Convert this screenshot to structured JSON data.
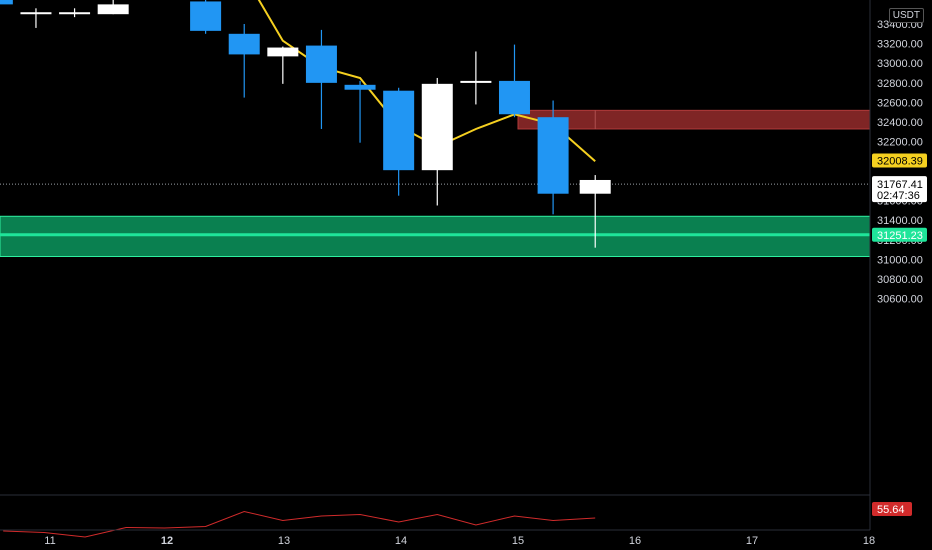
{
  "header": {
    "unit_label": "USDT"
  },
  "chart_data": {
    "type": "candlestick",
    "y_axis": {
      "range": [
        30400,
        33500
      ],
      "ticks": [
        "33400.00",
        "33200.00",
        "33000.00",
        "32800.00",
        "32600.00",
        "32400.00",
        "32200.00",
        "32000.00",
        "31800.00",
        "31600.00",
        "31400.00",
        "31200.00",
        "31000.00",
        "30800.00",
        "30600.00"
      ]
    },
    "x_axis": {
      "labels": [
        {
          "text": "11",
          "bold": false,
          "x": 11.0
        },
        {
          "text": "12",
          "bold": true,
          "x": 12.0
        },
        {
          "text": "13",
          "bold": false,
          "x": 13.0
        },
        {
          "text": "14",
          "bold": false,
          "x": 14.0
        },
        {
          "text": "15",
          "bold": false,
          "x": 15.0
        },
        {
          "text": "16",
          "bold": false,
          "x": 16.0
        },
        {
          "text": "17",
          "bold": false,
          "x": 17.0
        },
        {
          "text": "18",
          "bold": false,
          "x": 18.0
        }
      ]
    },
    "candles": [
      {
        "t": 10.55,
        "o": 33600,
        "h": 33900,
        "l": 33050,
        "c": 33700,
        "color": "blue"
      },
      {
        "t": 10.88,
        "o": 33520,
        "h": 33560,
        "l": 33360,
        "c": 33510,
        "color": "white"
      },
      {
        "t": 11.21,
        "o": 33520,
        "h": 33560,
        "l": 33470,
        "c": 33500,
        "color": "white"
      },
      {
        "t": 11.54,
        "o": 33600,
        "h": 33700,
        "l": 33500,
        "c": 33500,
        "color": "white"
      },
      {
        "t": 12.33,
        "o": 33630,
        "h": 33680,
        "l": 33300,
        "c": 33330,
        "color": "blue"
      },
      {
        "t": 12.66,
        "o": 33300,
        "h": 33400,
        "l": 32650,
        "c": 33090,
        "color": "blue"
      },
      {
        "t": 12.99,
        "o": 33070,
        "h": 33170,
        "l": 32790,
        "c": 33160,
        "color": "white"
      },
      {
        "t": 13.32,
        "o": 33180,
        "h": 33340,
        "l": 32330,
        "c": 32800,
        "color": "blue"
      },
      {
        "t": 13.65,
        "o": 32780,
        "h": 32820,
        "l": 32190,
        "c": 32730,
        "color": "blue"
      },
      {
        "t": 13.98,
        "o": 32720,
        "h": 32750,
        "l": 31650,
        "c": 31910,
        "color": "blue"
      },
      {
        "t": 14.31,
        "o": 31910,
        "h": 32850,
        "l": 31550,
        "c": 32790,
        "color": "white"
      },
      {
        "t": 14.64,
        "o": 32800,
        "h": 33120,
        "l": 32580,
        "c": 32820,
        "color": "white"
      },
      {
        "t": 14.97,
        "o": 32820,
        "h": 33190,
        "l": 32450,
        "c": 32480,
        "color": "blue"
      },
      {
        "t": 15.3,
        "o": 32450,
        "h": 32620,
        "l": 31460,
        "c": 31670,
        "color": "blue"
      },
      {
        "t": 15.66,
        "o": 31670,
        "h": 31860,
        "l": 31120,
        "c": 31810,
        "color": "white"
      }
    ],
    "ma_line": {
      "color": "#f5d020",
      "points": [
        [
          12.66,
          33900
        ],
        [
          12.99,
          33230
        ],
        [
          13.32,
          32960
        ],
        [
          13.65,
          32850
        ],
        [
          13.98,
          32360
        ],
        [
          14.31,
          32150
        ],
        [
          14.64,
          32330
        ],
        [
          14.97,
          32480
        ],
        [
          15.3,
          32380
        ],
        [
          15.66,
          32000
        ]
      ]
    },
    "zones": [
      {
        "name": "resistance-zone",
        "y_top": 32520,
        "y_bottom": 32330,
        "x_start": 15.0,
        "color": "#7f2525"
      },
      {
        "name": "support-zone",
        "y_top": 31440,
        "y_bottom": 31030,
        "x_start": 10.6,
        "color": "#0a8050"
      }
    ],
    "price_lines": [
      {
        "name": "support-line",
        "value": 31251.23,
        "label": "31251.23",
        "color": "#1fe59a",
        "text_color": "#ffffff"
      },
      {
        "name": "ma-value",
        "value": 32008.39,
        "label": "32008.39",
        "color": "#f5d020",
        "text_color": "#000000"
      },
      {
        "name": "last-price",
        "value": 31767.41,
        "label": "31767.41",
        "sublabel": "02:47:36",
        "color": "#ffffff",
        "text_color": "#000000"
      }
    ],
    "indicator": {
      "value_label": "55.64",
      "color": "#d12b2b",
      "points": [
        [
          10.6,
          531.0
        ],
        [
          10.95,
          532.5
        ],
        [
          11.3,
          537.0
        ],
        [
          11.65,
          527.5
        ],
        [
          11.98,
          528.0
        ],
        [
          12.33,
          526.5
        ],
        [
          12.66,
          511.5
        ],
        [
          12.99,
          520.5
        ],
        [
          13.32,
          516.0
        ],
        [
          13.65,
          514.5
        ],
        [
          13.98,
          522.0
        ],
        [
          14.31,
          514.5
        ],
        [
          14.64,
          525.0
        ],
        [
          14.97,
          516.0
        ],
        [
          15.3,
          520.5
        ],
        [
          15.66,
          518.0
        ]
      ]
    }
  }
}
